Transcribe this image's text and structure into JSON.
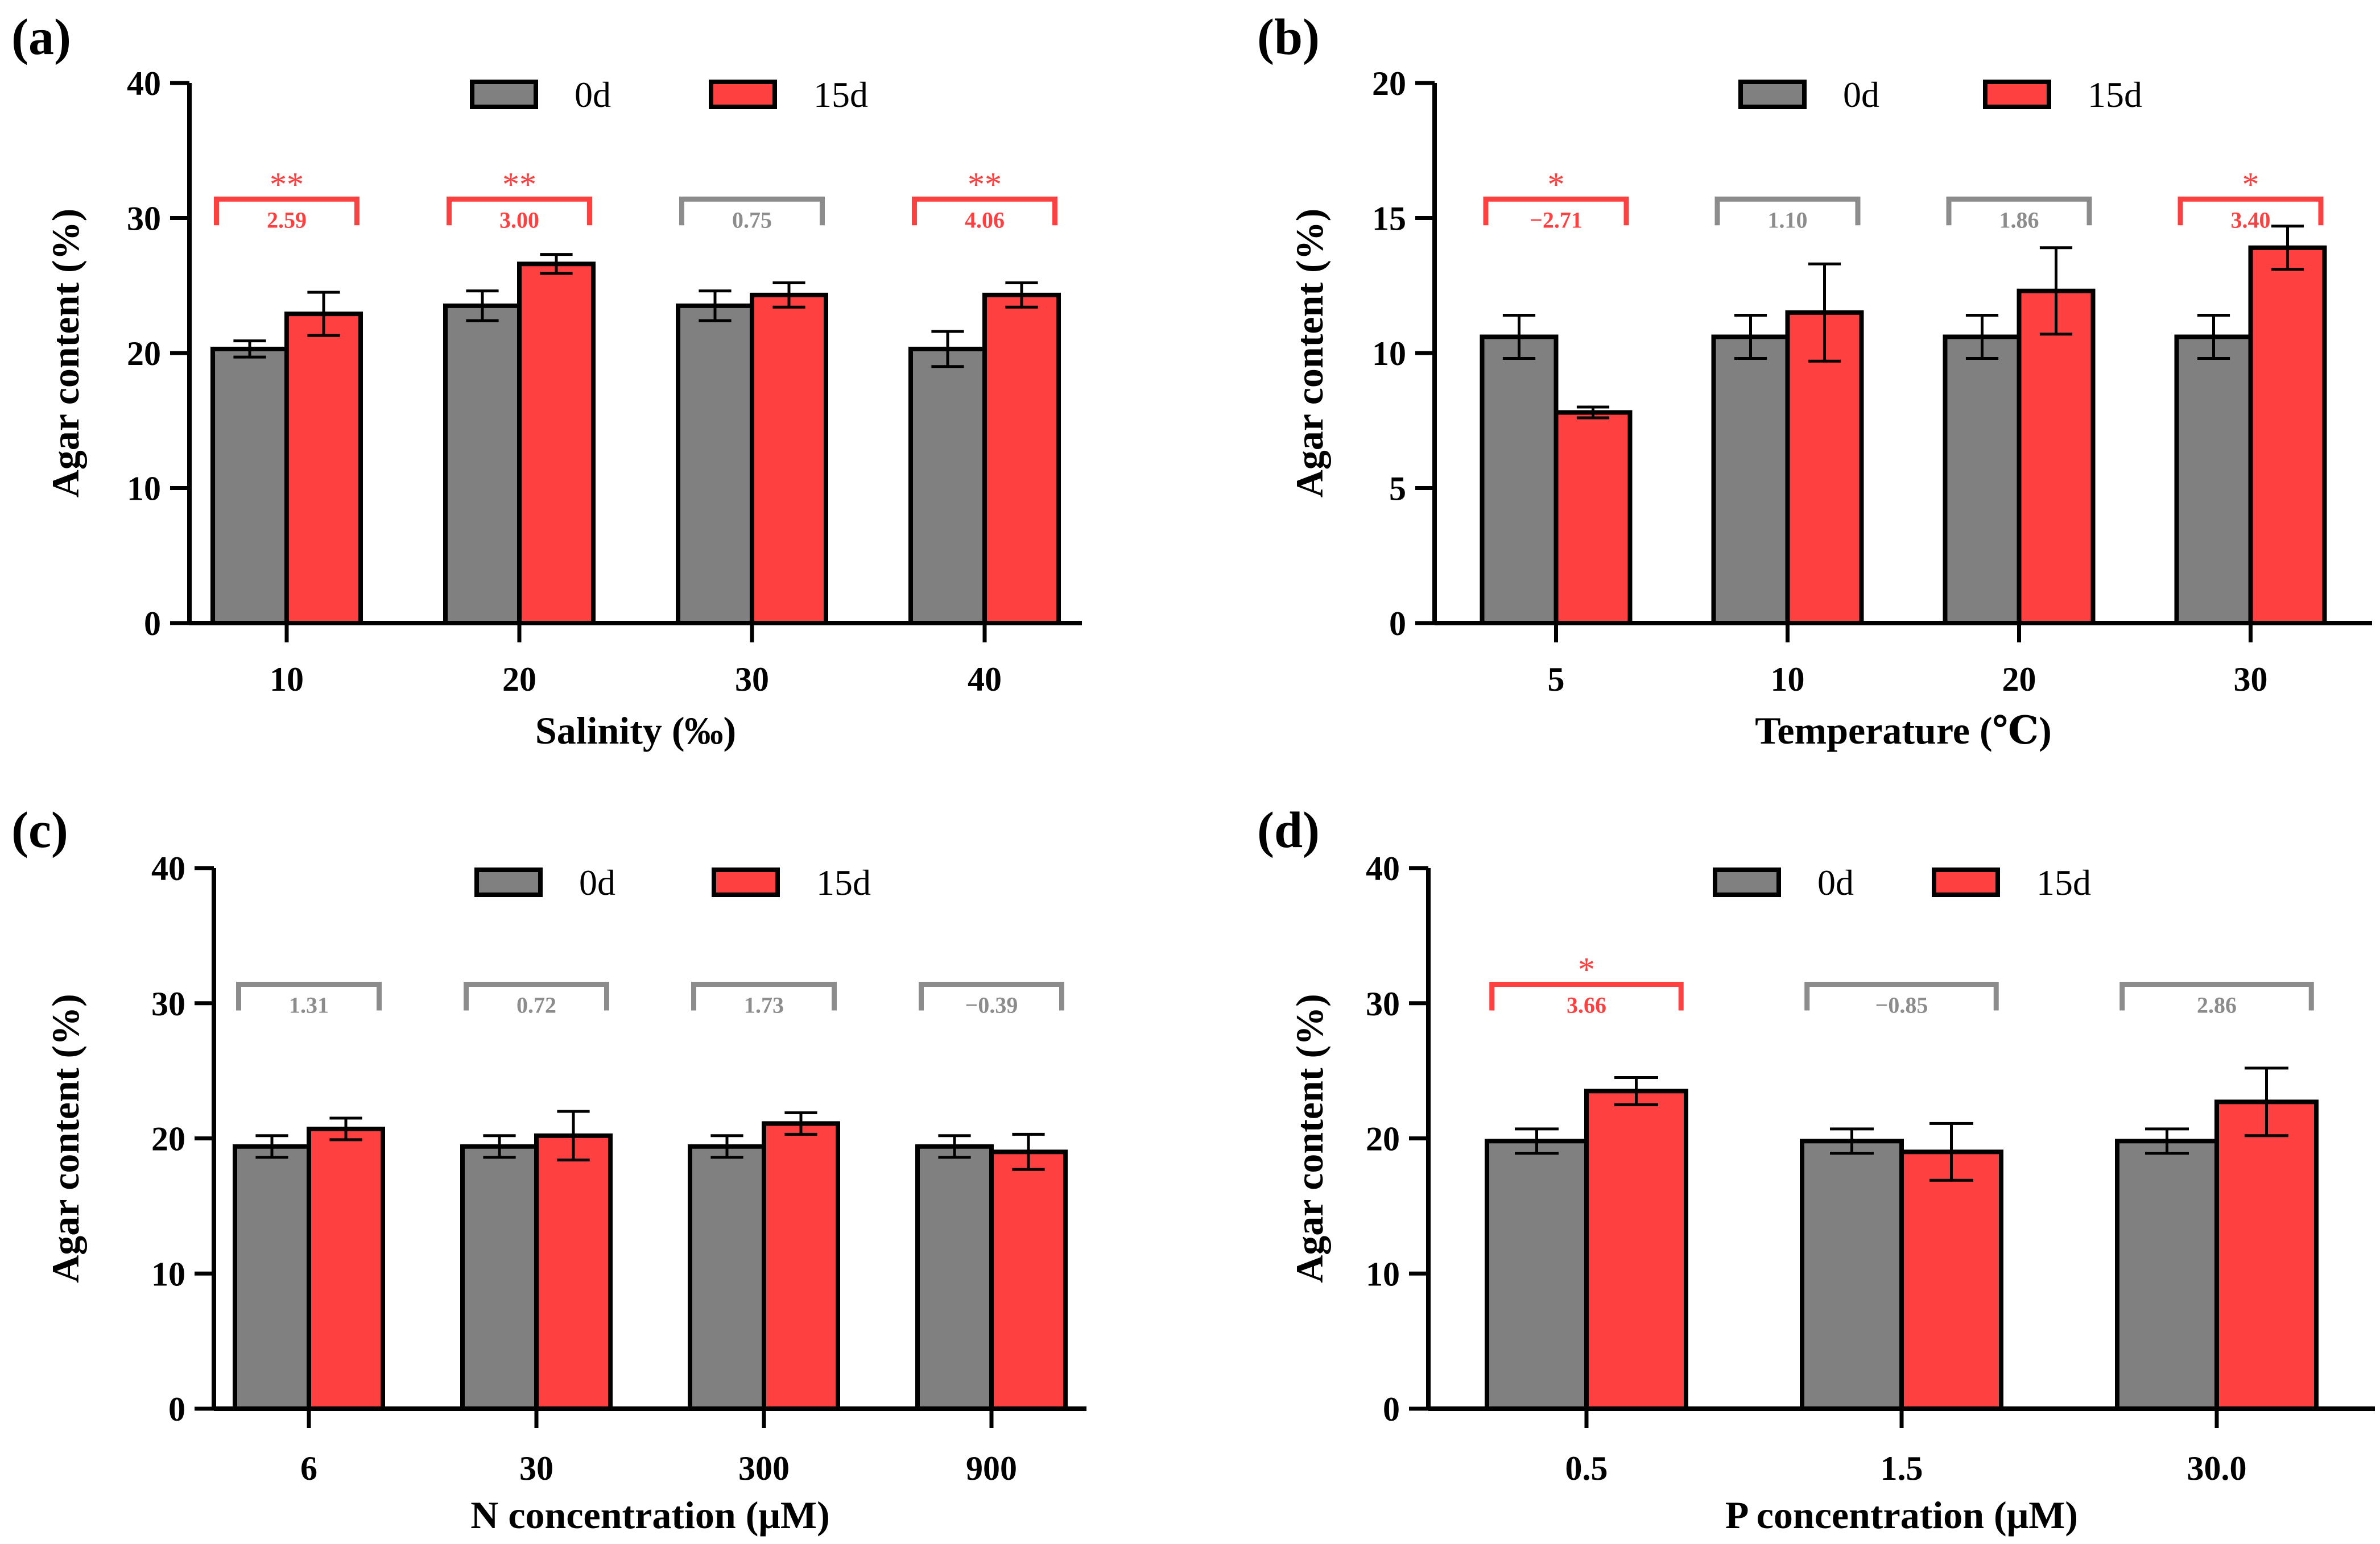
{
  "colors": {
    "day0": "#808080",
    "day15": "#ff4040",
    "sig": "#ff4040",
    "nonsig": "#8c8c8c",
    "axis": "#000000"
  },
  "legend": {
    "series0": "0d",
    "series15": "15d"
  },
  "chart_data": [
    {
      "panel": "(a)",
      "type": "bar",
      "title": "",
      "xlabel": "Salinity (‰)",
      "ylabel": "Agar content (%)",
      "ylim": [
        0,
        40
      ],
      "yticks": [
        0,
        10,
        20,
        30,
        40
      ],
      "categories": [
        "10",
        "20",
        "30",
        "40"
      ],
      "series": [
        {
          "name": "0d",
          "values": [
            20.3,
            23.5,
            23.5,
            20.3
          ],
          "errors": [
            0.6,
            1.1,
            1.1,
            1.3
          ]
        },
        {
          "name": "15d",
          "values": [
            22.9,
            26.6,
            24.3,
            24.3
          ],
          "errors": [
            1.6,
            0.7,
            0.9,
            0.9
          ]
        }
      ],
      "annotations": [
        {
          "category": "10",
          "value": "2.59",
          "stars": "**",
          "significant": true
        },
        {
          "category": "20",
          "value": "3.00",
          "stars": "**",
          "significant": true
        },
        {
          "category": "30",
          "value": "0.75",
          "stars": "",
          "significant": false
        },
        {
          "category": "40",
          "value": "4.06",
          "stars": "**",
          "significant": true
        }
      ],
      "legend_position": "top"
    },
    {
      "panel": "(b)",
      "type": "bar",
      "title": "",
      "xlabel": "Temperature (℃)",
      "ylabel": "Agar content (%)",
      "ylim": [
        0,
        20
      ],
      "yticks": [
        0,
        5,
        10,
        15,
        20
      ],
      "categories": [
        "5",
        "10",
        "20",
        "30"
      ],
      "series": [
        {
          "name": "0d",
          "values": [
            10.6,
            10.6,
            10.6,
            10.6
          ],
          "errors": [
            0.8,
            0.8,
            0.8,
            0.8
          ]
        },
        {
          "name": "15d",
          "values": [
            7.8,
            11.5,
            12.3,
            13.9
          ],
          "errors": [
            0.2,
            1.8,
            1.6,
            0.8
          ]
        }
      ],
      "annotations": [
        {
          "category": "5",
          "value": "−2.71",
          "stars": "*",
          "significant": true
        },
        {
          "category": "10",
          "value": "1.10",
          "stars": "",
          "significant": false
        },
        {
          "category": "20",
          "value": "1.86",
          "stars": "",
          "significant": false
        },
        {
          "category": "30",
          "value": "3.40",
          "stars": "*",
          "significant": true
        }
      ],
      "legend_position": "top"
    },
    {
      "panel": "(c)",
      "type": "bar",
      "title": "",
      "xlabel": "N concentration (μM)",
      "ylabel": "Agar content (%)",
      "ylim": [
        0,
        40
      ],
      "yticks": [
        0,
        10,
        20,
        30,
        40
      ],
      "categories": [
        "6",
        "30",
        "300",
        "900"
      ],
      "series": [
        {
          "name": "0d",
          "values": [
            19.4,
            19.4,
            19.4,
            19.4
          ],
          "errors": [
            0.8,
            0.8,
            0.8,
            0.8
          ]
        },
        {
          "name": "15d",
          "values": [
            20.7,
            20.2,
            21.1,
            19.0
          ],
          "errors": [
            0.8,
            1.8,
            0.8,
            1.3
          ]
        }
      ],
      "annotations": [
        {
          "category": "6",
          "value": "1.31",
          "stars": "",
          "significant": false
        },
        {
          "category": "30",
          "value": "0.72",
          "stars": "",
          "significant": false
        },
        {
          "category": "300",
          "value": "1.73",
          "stars": "",
          "significant": false
        },
        {
          "category": "900",
          "value": "−0.39",
          "stars": "",
          "significant": false
        }
      ],
      "legend_position": "top"
    },
    {
      "panel": "(d)",
      "type": "bar",
      "title": "",
      "xlabel": "P concentration (μM)",
      "ylabel": "Agar content (%)",
      "ylim": [
        0,
        40
      ],
      "yticks": [
        0,
        10,
        20,
        30,
        40
      ],
      "categories": [
        "0.5",
        "1.5",
        "30.0"
      ],
      "series": [
        {
          "name": "0d",
          "values": [
            19.8,
            19.8,
            19.8
          ],
          "errors": [
            0.9,
            0.9,
            0.9
          ]
        },
        {
          "name": "15d",
          "values": [
            23.5,
            19.0,
            22.7
          ],
          "errors": [
            1.0,
            2.1,
            2.5
          ]
        }
      ],
      "annotations": [
        {
          "category": "0.5",
          "value": "3.66",
          "stars": "*",
          "significant": true
        },
        {
          "category": "1.5",
          "value": "−0.85",
          "stars": "",
          "significant": false
        },
        {
          "category": "30.0",
          "value": "2.86",
          "stars": "",
          "significant": false
        }
      ],
      "legend_position": "top"
    }
  ]
}
